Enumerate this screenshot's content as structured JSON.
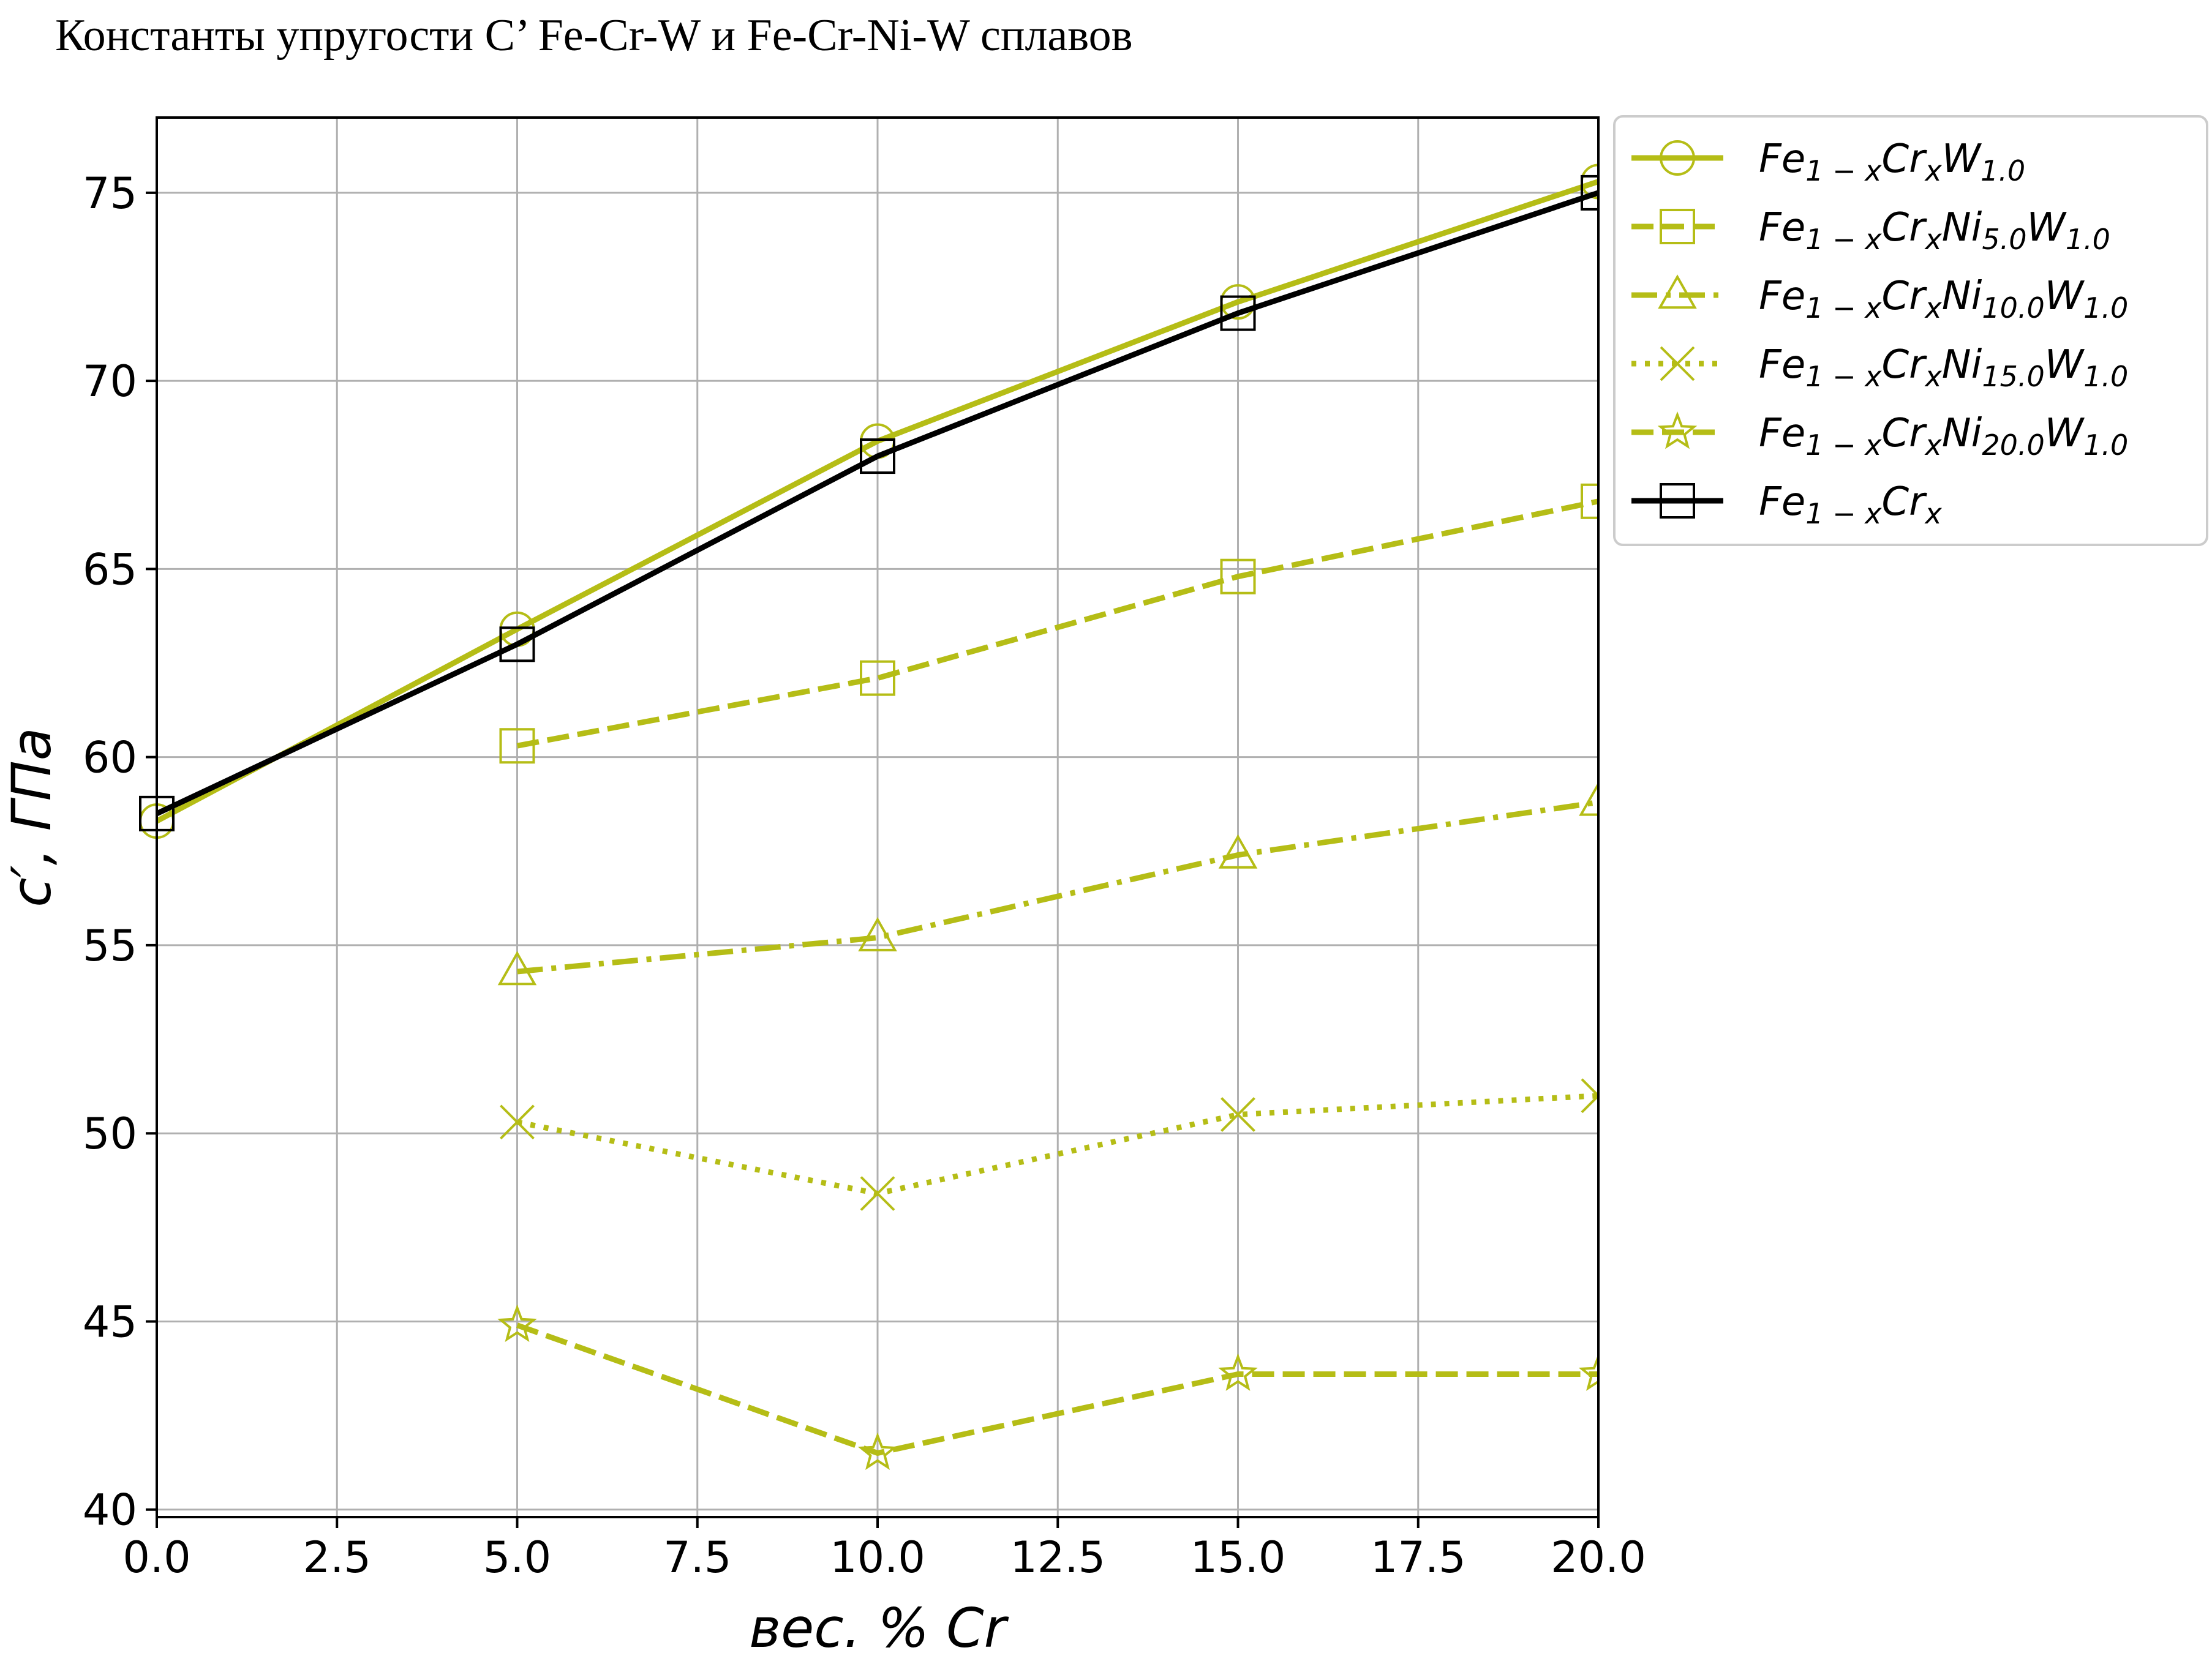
{
  "title": "Константы упругости C’ Fe-Cr-W и Fe-Cr-Ni-W сплавов",
  "chart_data": {
    "type": "line",
    "xlabel": "вес. % Cr",
    "ylabel": "c′, ГПа",
    "xlim": [
      0,
      20
    ],
    "ylim": [
      39.8,
      77
    ],
    "xticks": [
      "0.0",
      "2.5",
      "5.0",
      "7.5",
      "10.0",
      "12.5",
      "15.0",
      "17.5",
      "20.0"
    ],
    "yticks": [
      "40",
      "45",
      "50",
      "55",
      "60",
      "65",
      "70",
      "75"
    ],
    "grid": true,
    "legend_position": "outside-right-top",
    "series": [
      {
        "name": "Fe1−xCrxW1.0",
        "name_parts": {
          "base": "Fe",
          "s1": "1 − x",
          "b2": "Cr",
          "s2": "x",
          "b3": "",
          "s3": "",
          "b4": "W",
          "s4": "1.0"
        },
        "color": "#b5bd16",
        "linestyle": "solid",
        "marker": "circle",
        "x": [
          0,
          5,
          10,
          15,
          20
        ],
        "y": [
          58.3,
          63.4,
          68.4,
          72.1,
          75.3
        ]
      },
      {
        "name": "Fe1−xCrxNi5.0W1.0",
        "name_parts": {
          "base": "Fe",
          "s1": "1 − x",
          "b2": "Cr",
          "s2": "x",
          "b3": "Ni",
          "s3": "5.0",
          "b4": "W",
          "s4": "1.0"
        },
        "color": "#b5bd16",
        "linestyle": "dashed",
        "marker": "square",
        "x": [
          5,
          10,
          15,
          20
        ],
        "y": [
          60.3,
          62.1,
          64.8,
          66.8
        ]
      },
      {
        "name": "Fe1−xCrxNi10.0W1.0",
        "name_parts": {
          "base": "Fe",
          "s1": "1 − x",
          "b2": "Cr",
          "s2": "x",
          "b3": "Ni",
          "s3": "10.0",
          "b4": "W",
          "s4": "1.0"
        },
        "color": "#b5bd16",
        "linestyle": "dashdot",
        "marker": "triangle",
        "x": [
          5,
          10,
          15,
          20
        ],
        "y": [
          54.3,
          55.2,
          57.4,
          58.8
        ]
      },
      {
        "name": "Fe1−xCrxNi15.0W1.0",
        "name_parts": {
          "base": "Fe",
          "s1": "1 − x",
          "b2": "Cr",
          "s2": "x",
          "b3": "Ni",
          "s3": "15.0",
          "b4": "W",
          "s4": "1.0"
        },
        "color": "#b5bd16",
        "linestyle": "dotted",
        "marker": "x",
        "x": [
          5,
          10,
          15,
          20
        ],
        "y": [
          50.3,
          48.4,
          50.5,
          51.0
        ]
      },
      {
        "name": "Fe1−xCrxNi20.0W1.0",
        "name_parts": {
          "base": "Fe",
          "s1": "1 − x",
          "b2": "Cr",
          "s2": "x",
          "b3": "Ni",
          "s3": "20.0",
          "b4": "W",
          "s4": "1.0"
        },
        "color": "#b5bd16",
        "linestyle": "dashed",
        "marker": "star",
        "x": [
          5,
          10,
          15,
          20
        ],
        "y": [
          44.9,
          41.5,
          43.6,
          43.6
        ]
      },
      {
        "name": "Fe1−xCrx",
        "name_parts": {
          "base": "Fe",
          "s1": "1 − x",
          "b2": "Cr",
          "s2": "x",
          "b3": "",
          "s3": "",
          "b4": "",
          "s4": ""
        },
        "color": "#000000",
        "linestyle": "solid",
        "marker": "square",
        "x": [
          0,
          5,
          10,
          15,
          20
        ],
        "y": [
          58.5,
          63.0,
          68.0,
          71.8,
          75.0
        ]
      }
    ]
  }
}
